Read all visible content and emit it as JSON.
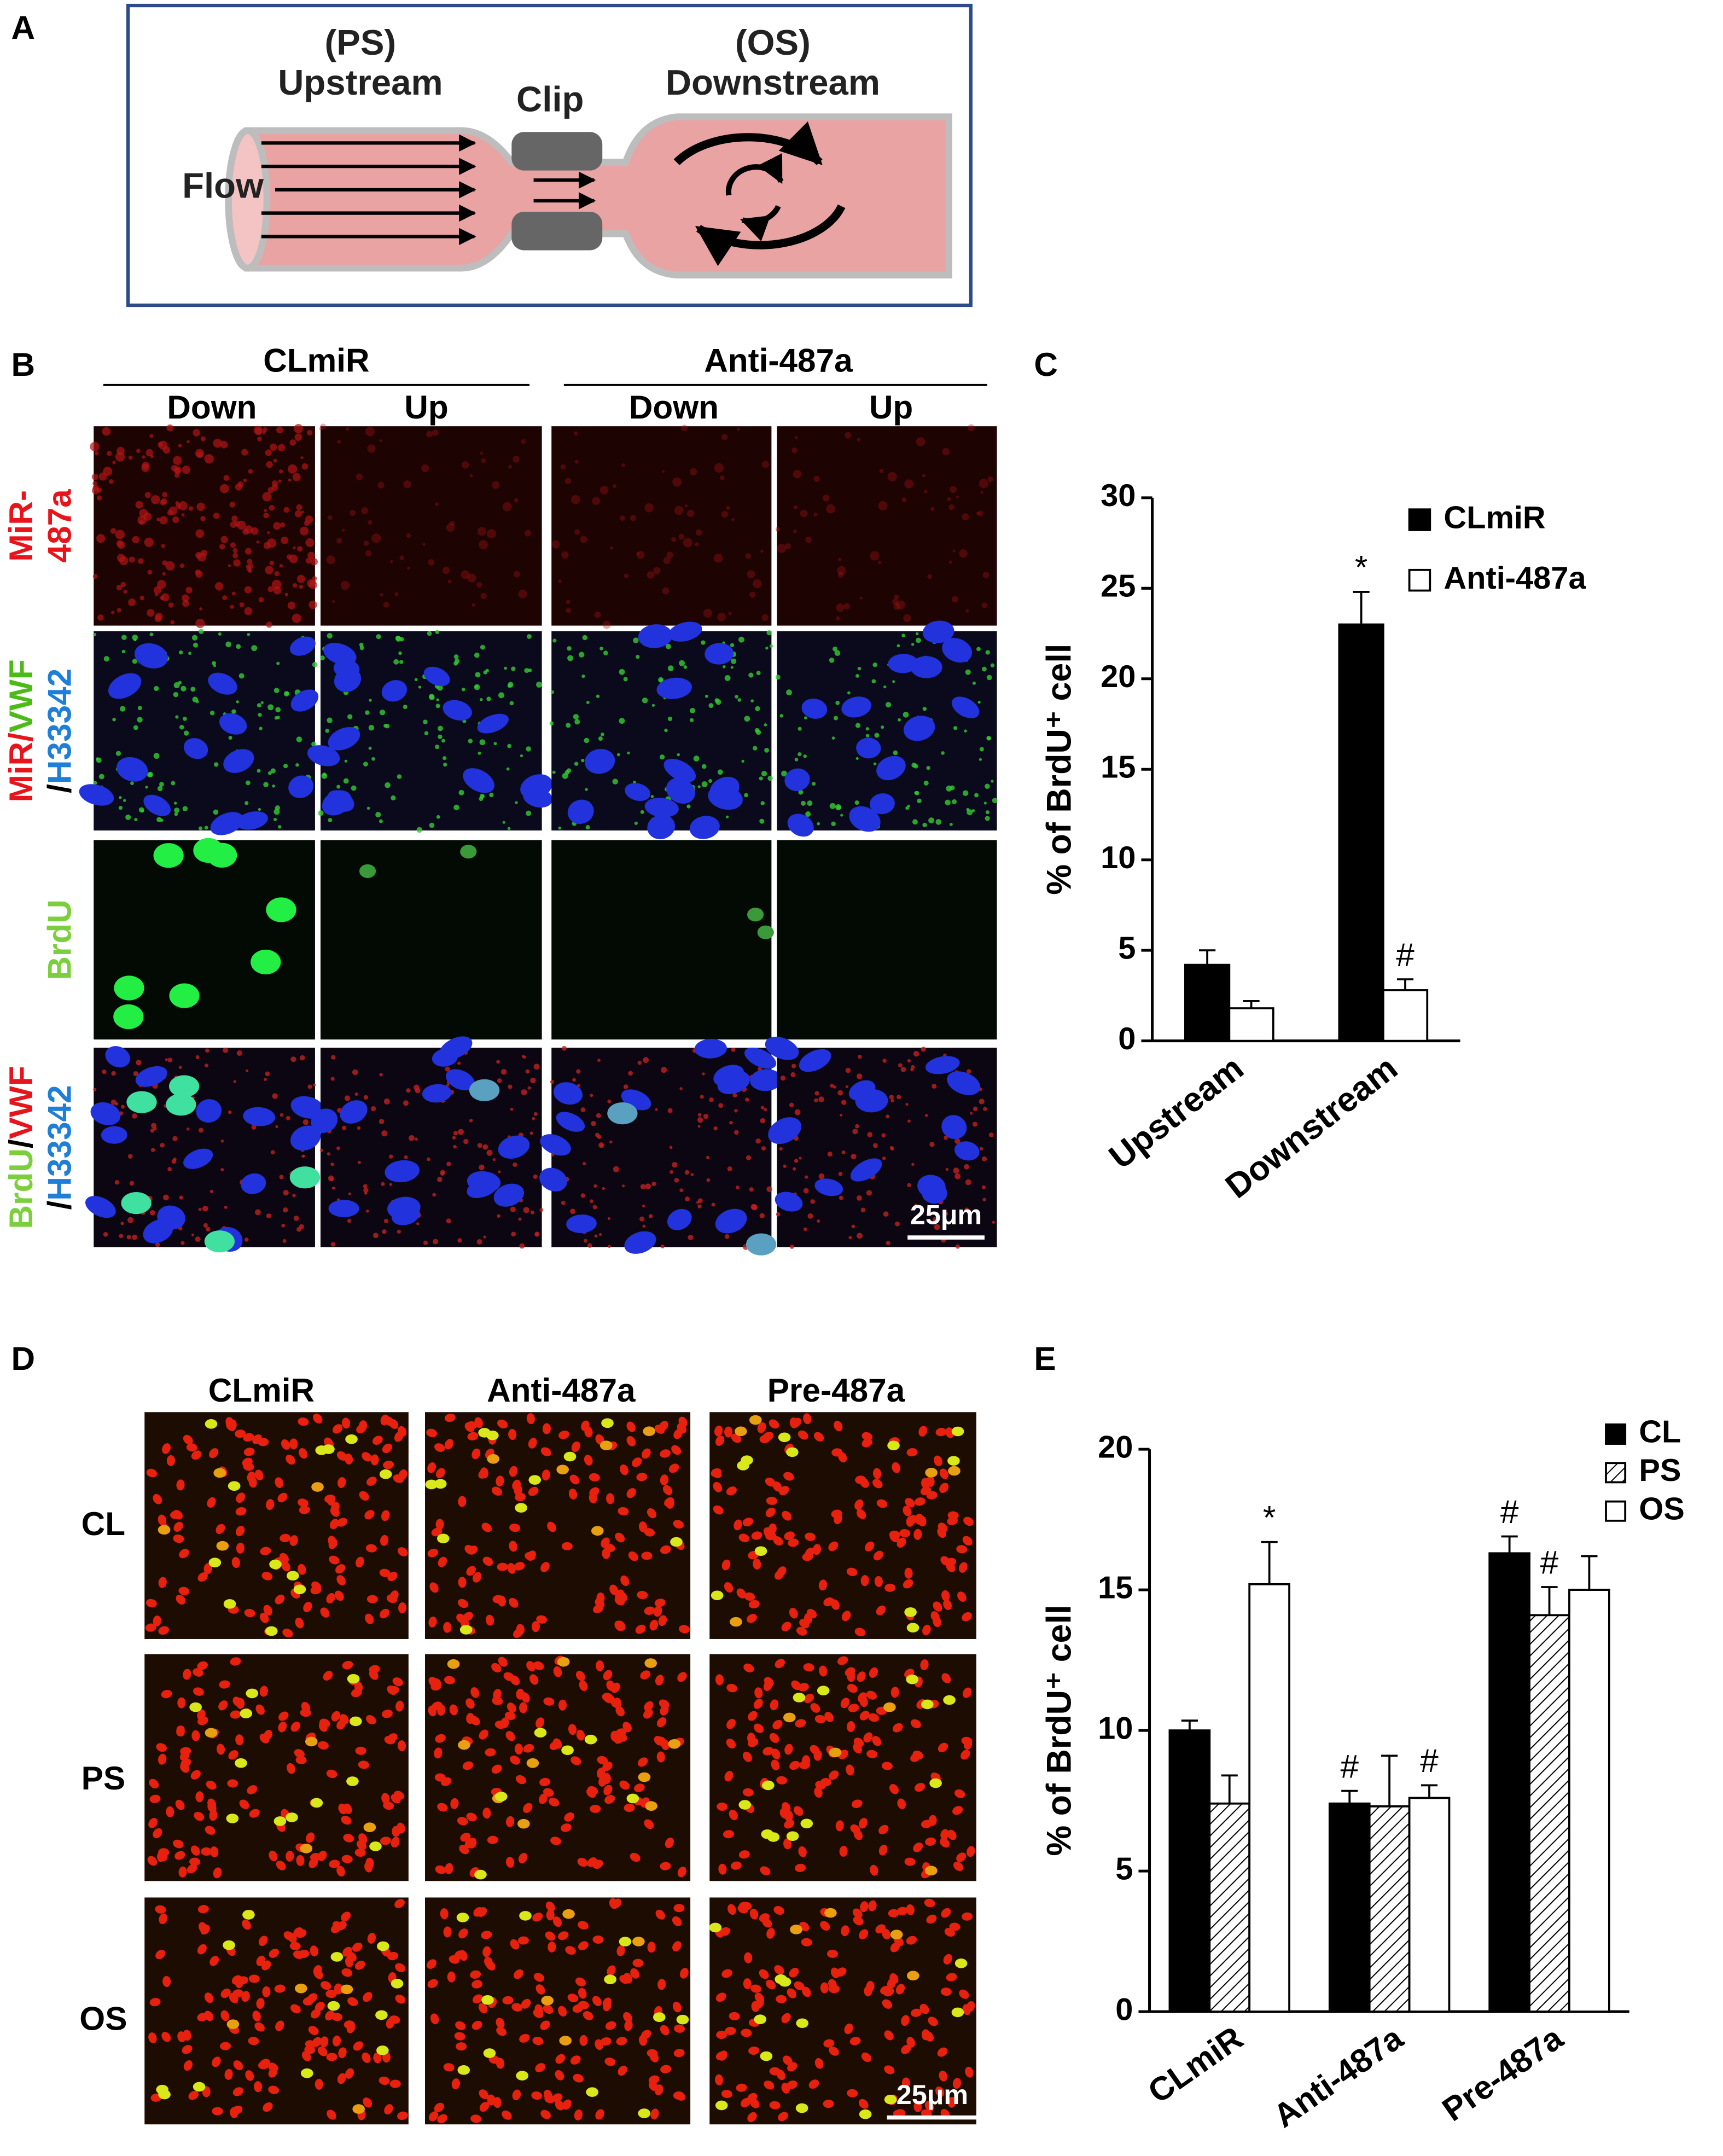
{
  "panel_labels": [
    "A",
    "B",
    "C",
    "D",
    "E"
  ],
  "diagram": {
    "upstream_tag": "(PS)",
    "upstream": "Upstream",
    "clip": "Clip",
    "downstream_tag": "(OS)",
    "downstream": "Downstream",
    "flow": "Flow"
  },
  "panel_b": {
    "groups": [
      "CLmiR",
      "Anti-487a"
    ],
    "columns": [
      "Down",
      "Up",
      "Down",
      "Up"
    ],
    "rows": [
      [
        [
          {
            "text": "MiR-",
            "color": "#e8141b"
          }
        ],
        [
          {
            "text": "487a",
            "color": "#e8141b"
          }
        ]
      ],
      [
        [
          {
            "text": "MiR/",
            "color": "#e8141b"
          },
          {
            "text": "VWF",
            "color": "#4cbb17"
          }
        ],
        [
          {
            "text": "/",
            "color": "#000000"
          },
          {
            "text": "H33342",
            "color": "#1f7fd8"
          }
        ]
      ],
      [
        [
          {
            "text": "BrdU",
            "color": "#7ccf3c"
          }
        ]
      ],
      [
        [
          {
            "text": "BrdU",
            "color": "#7ccf3c"
          },
          {
            "text": "/",
            "color": "#000000"
          },
          {
            "text": "VWF",
            "color": "#e8141b"
          }
        ],
        [
          {
            "text": "/",
            "color": "#000000"
          },
          {
            "text": "H33342",
            "color": "#1f7fd8"
          }
        ]
      ]
    ],
    "scale_bar": "25μm"
  },
  "panel_d": {
    "columns": [
      "CLmiR",
      "Anti-487a",
      "Pre-487a"
    ],
    "rows": [
      "CL",
      "PS",
      "OS"
    ],
    "scale_bar": "25μm"
  },
  "chart_data": [
    {
      "type": "bar",
      "ylabel": "% of BrdU⁺ cell",
      "categories": [
        "Upstream",
        "Downstream"
      ],
      "series": [
        {
          "name": "CLmiR",
          "color": "#000000",
          "values": [
            4.2,
            23.0
          ],
          "errors": [
            0.8,
            1.8
          ],
          "annotations": [
            null,
            "*"
          ]
        },
        {
          "name": "Anti-487a",
          "color": "#ffffff",
          "values": [
            1.8,
            2.8
          ],
          "errors": [
            0.4,
            0.6
          ],
          "annotations": [
            null,
            "#"
          ]
        }
      ],
      "ylim": [
        0,
        30
      ],
      "yticks": [
        0,
        5,
        10,
        15,
        20,
        25,
        30
      ],
      "legend": "upper right"
    },
    {
      "type": "bar",
      "ylabel": "% of BrdU⁺ cell",
      "categories": [
        "CLmiR",
        "Anti-487a",
        "Pre-487a"
      ],
      "series": [
        {
          "name": "CL",
          "color": "#000000",
          "values": [
            10.0,
            7.4,
            16.3
          ],
          "errors": [
            0.35,
            0.45,
            0.6
          ],
          "annotations": [
            null,
            "#",
            "#"
          ]
        },
        {
          "name": "PS",
          "color": "#ffffff",
          "pattern": "hatch",
          "values": [
            7.4,
            7.3,
            14.1
          ],
          "errors": [
            1.0,
            1.8,
            1.0
          ],
          "annotations": [
            null,
            null,
            "#"
          ]
        },
        {
          "name": "OS",
          "color": "#ffffff",
          "values": [
            15.2,
            7.6,
            15.0
          ],
          "errors": [
            1.5,
            0.45,
            1.2
          ],
          "annotations": [
            "*",
            "#",
            null
          ]
        }
      ],
      "ylim": [
        0,
        20
      ],
      "yticks": [
        0,
        5,
        10,
        15,
        20
      ],
      "legend": "upper right"
    }
  ]
}
